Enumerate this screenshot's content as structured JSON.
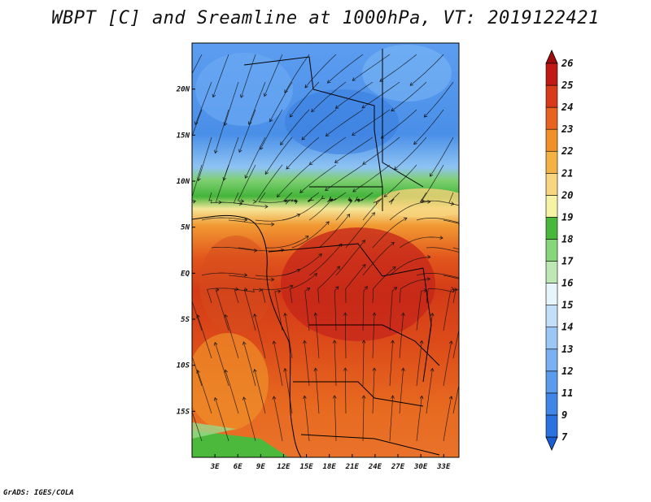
{
  "title": "WBPT [C] and Sreamline at 1000hPa, VT: 2019122421",
  "credit": "GrADS: IGES/COLA",
  "map": {
    "lon_labels": [
      "3E",
      "6E",
      "9E",
      "12E",
      "15E",
      "18E",
      "21E",
      "24E",
      "27E",
      "30E",
      "33E"
    ],
    "lat_labels": [
      "20N",
      "15N",
      "10N",
      "5N",
      "EQ",
      "5S",
      "10S",
      "15S"
    ],
    "lon_range": [
      0,
      35
    ],
    "lat_range": [
      -20,
      25
    ]
  },
  "colorbar": {
    "labels": [
      "7",
      "9",
      "11",
      "12",
      "13",
      "14",
      "15",
      "16",
      "17",
      "18",
      "19",
      "20",
      "21",
      "22",
      "23",
      "24",
      "25",
      "26"
    ],
    "colors": [
      "#1a5ed6",
      "#2a72e0",
      "#3f86e8",
      "#5a9bee",
      "#79b1f3",
      "#9bc7f7",
      "#c2def9",
      "#e6f4fb",
      "#bde8b4",
      "#86d67a",
      "#47b83a",
      "#f6f3a5",
      "#f8d680",
      "#f5b244",
      "#f1902a",
      "#e8631f",
      "#d93b1a",
      "#c11a14",
      "#9e0d0d"
    ]
  }
}
